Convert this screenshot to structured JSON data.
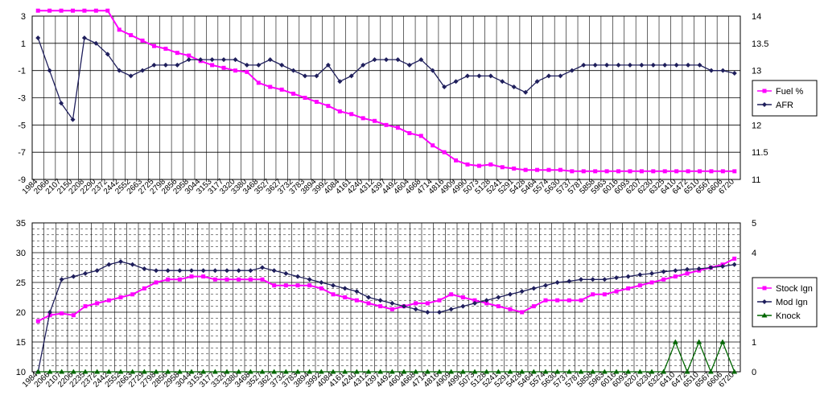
{
  "chart_data": [
    {
      "type": "line",
      "x_categories": [
        "1984",
        "2066",
        "2107",
        "2150",
        "2208",
        "2290",
        "2372",
        "2442",
        "2552",
        "2663",
        "2725",
        "2798",
        "2856",
        "2958",
        "3044",
        "3153",
        "3177",
        "3320",
        "3380",
        "3468",
        "3527",
        "3627",
        "3732",
        "3783",
        "3894",
        "3992",
        "4084",
        "4161",
        "4240",
        "4312",
        "4397",
        "4492",
        "4604",
        "4668",
        "4714",
        "4816",
        "4909",
        "4990",
        "5073",
        "5128",
        "5241",
        "5291",
        "5428",
        "5464",
        "5574",
        "5630",
        "5737",
        "5787",
        "5858",
        "5963",
        "6016",
        "6093",
        "6207",
        "6230",
        "6325",
        "6410",
        "6472",
        "6510",
        "6567",
        "6606",
        "6720"
      ],
      "series": [
        {
          "name": "Fuel %",
          "axis": "left",
          "color": "#ff00ff",
          "marker": "square",
          "values": [
            3.4,
            3.4,
            3.4,
            3.4,
            3.4,
            3.4,
            3.4,
            2.0,
            1.6,
            1.2,
            0.8,
            0.6,
            0.3,
            0.1,
            -0.3,
            -0.6,
            -0.8,
            -1.0,
            -1.1,
            -1.9,
            -2.2,
            -2.4,
            -2.7,
            -3.0,
            -3.3,
            -3.6,
            -4.0,
            -4.2,
            -4.5,
            -4.7,
            -5.0,
            -5.2,
            -5.6,
            -5.8,
            -6.5,
            -7.0,
            -7.6,
            -7.9,
            -8.0,
            -7.9,
            -8.1,
            -8.2,
            -8.3,
            -8.3,
            -8.3,
            -8.3,
            -8.4,
            -8.4,
            -8.4,
            -8.4,
            -8.4,
            -8.4,
            -8.4,
            -8.4,
            -8.4,
            -8.4,
            -8.4,
            -8.4,
            -8.4,
            -8.4,
            -8.4
          ]
        },
        {
          "name": "AFR",
          "axis": "right",
          "color": "#1f1f5c",
          "marker": "diamond",
          "values": [
            13.6,
            13.0,
            12.4,
            12.1,
            13.6,
            13.5,
            13.3,
            13.0,
            12.9,
            13.0,
            13.1,
            13.1,
            13.1,
            13.2,
            13.2,
            13.2,
            13.2,
            13.2,
            13.1,
            13.1,
            13.2,
            13.1,
            13.0,
            12.9,
            12.9,
            13.1,
            12.8,
            12.9,
            13.1,
            13.2,
            13.2,
            13.2,
            13.1,
            13.2,
            13.0,
            12.7,
            12.8,
            12.9,
            12.9,
            12.9,
            12.8,
            12.7,
            12.6,
            12.8,
            12.9,
            12.9,
            13.0,
            13.1,
            13.1,
            13.1,
            13.1,
            13.1,
            13.1,
            13.1,
            13.1,
            13.1,
            13.1,
            13.1,
            13.0,
            13.0,
            12.95
          ]
        }
      ],
      "left_axis": {
        "ticks": [
          "3",
          "1",
          "-1",
          "-3",
          "-5",
          "-7",
          "-9"
        ],
        "min": -9,
        "max": 3
      },
      "right_axis": {
        "ticks": [
          "14",
          "13.5",
          "13",
          "12.5",
          "12",
          "11.5",
          "11"
        ],
        "min": 11,
        "max": 14
      },
      "legend_position": "right"
    },
    {
      "type": "line",
      "x_categories": [
        "1984",
        "2066",
        "2107",
        "2206",
        "2235",
        "2372",
        "2442",
        "2552",
        "2663",
        "2729",
        "2798",
        "2856",
        "2958",
        "3044",
        "3153",
        "3177",
        "3320",
        "3380",
        "3468",
        "3527",
        "3627",
        "3732",
        "3783",
        "3894",
        "3992",
        "4084",
        "4161",
        "4240",
        "4312",
        "4397",
        "4492",
        "4604",
        "4668",
        "4714",
        "4816",
        "4909",
        "4990",
        "5073",
        "5128",
        "5241",
        "5291",
        "5428",
        "5464",
        "5574",
        "5630",
        "5737",
        "5787",
        "5858",
        "5963",
        "6016",
        "6093",
        "6207",
        "6230",
        "6325",
        "6410",
        "6472",
        "6510",
        "6567",
        "6606",
        "6720"
      ],
      "series": [
        {
          "name": "Stock Ign",
          "axis": "left",
          "color": "#ff00ff",
          "marker": "square",
          "values": [
            18.5,
            19.5,
            19.8,
            19.5,
            21,
            21.5,
            22,
            22.5,
            23,
            24,
            25,
            25.5,
            25.5,
            26,
            26,
            25.5,
            25.5,
            25.5,
            25.5,
            25.5,
            24.5,
            24.5,
            24.5,
            24.5,
            24,
            23,
            22.5,
            22,
            21.5,
            21,
            20.5,
            21,
            21.5,
            21.5,
            22,
            23,
            22.5,
            22,
            21.5,
            21,
            20.5,
            20,
            21,
            22,
            22,
            22,
            22,
            23,
            23,
            23.5,
            24,
            24.5,
            25,
            25.5,
            26,
            26.5,
            27,
            27.5,
            28,
            29
          ]
        },
        {
          "name": "Mod Ign",
          "axis": "left",
          "color": "#1f1f5c",
          "marker": "diamond",
          "values": [
            10,
            20,
            25.5,
            26,
            26.5,
            27,
            28,
            28.5,
            28,
            27.3,
            27,
            27,
            27,
            27,
            27,
            27,
            27,
            27,
            27,
            27.5,
            27,
            26.5,
            26,
            25.5,
            25,
            24.5,
            24,
            23.5,
            22.5,
            22,
            21.5,
            21,
            20.5,
            20,
            20,
            20.5,
            21,
            21.5,
            22,
            22.5,
            23,
            23.5,
            24,
            24.5,
            25,
            25.2,
            25.5,
            25.5,
            25.5,
            25.8,
            26,
            26.3,
            26.5,
            26.8,
            27,
            27.2,
            27.3,
            27.5,
            27.7,
            28
          ]
        },
        {
          "name": "Knock",
          "axis": "right",
          "color": "#006600",
          "marker": "triangle",
          "values": [
            0,
            0,
            0,
            0,
            0,
            0,
            0,
            0,
            0,
            0,
            0,
            0,
            0,
            0,
            0,
            0,
            0,
            0,
            0,
            0,
            0,
            0,
            0,
            0,
            0,
            0,
            0,
            0,
            0,
            0,
            0,
            0,
            0,
            0,
            0,
            0,
            0,
            0,
            0,
            0,
            0,
            0,
            0,
            0,
            0,
            0,
            0,
            0,
            0,
            0,
            0,
            0,
            0,
            0,
            1,
            0,
            1,
            0,
            1,
            0
          ]
        }
      ],
      "left_axis": {
        "ticks": [
          "35",
          "30",
          "25",
          "20",
          "15",
          "10"
        ],
        "min": 10,
        "max": 35
      },
      "right_axis": {
        "ticks": [
          "5",
          "4",
          "3",
          "2",
          "1",
          "0"
        ],
        "min": 0,
        "max": 5
      },
      "legend_position": "right"
    }
  ]
}
